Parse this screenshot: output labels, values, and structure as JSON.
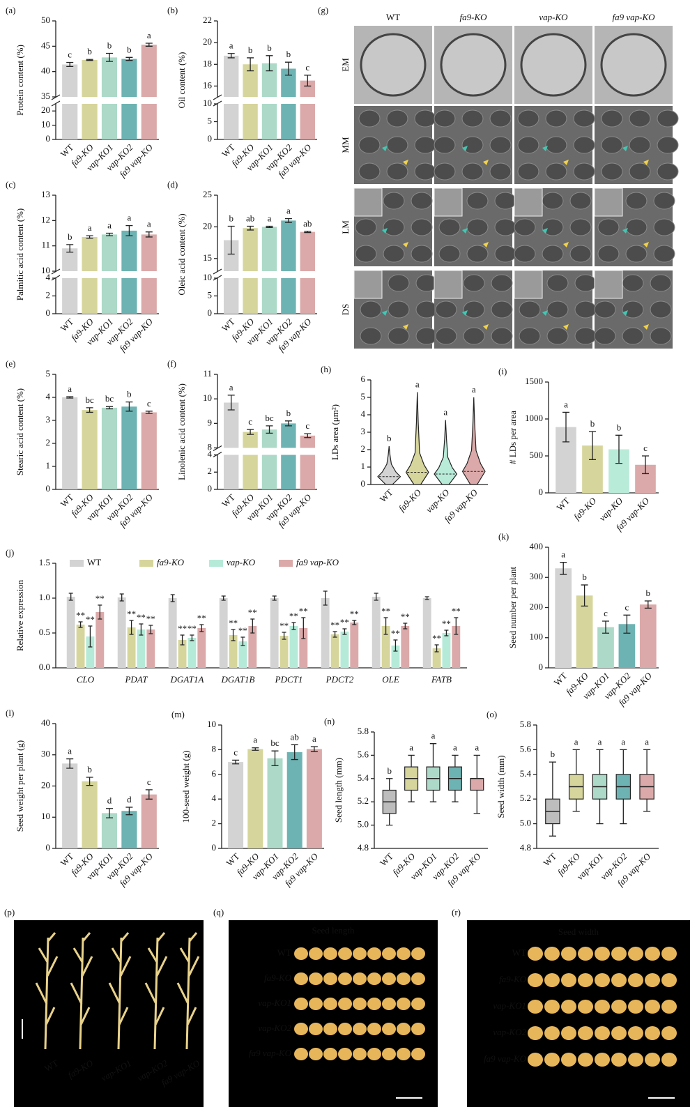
{
  "chart_data": [
    {
      "type": "bar",
      "panel": "(a)",
      "ylabel": "Protein content (%)",
      "categories": [
        "WT",
        "fa9-KO",
        "vap-KO1",
        "vap-KO2",
        "fa9 vap-KO"
      ],
      "values": [
        41.4,
        42.3,
        42.8,
        42.5,
        45.3
      ],
      "errors": [
        0.4,
        0.1,
        0.8,
        0.3,
        0.3
      ],
      "letters": [
        "c",
        "b",
        "b",
        "b",
        "a"
      ],
      "colors": [
        "#d3d3d3",
        "#d6d59b",
        "#acd9c8",
        "#6eb3b3",
        "#dba9a9"
      ],
      "ylim": [
        0,
        50
      ],
      "ybreak": [
        25,
        35
      ],
      "yticks": [
        0,
        10,
        20,
        35,
        40,
        45,
        50
      ]
    },
    {
      "type": "bar",
      "panel": "(b)",
      "ylabel": "Oil content (%)",
      "categories": [
        "WT",
        "fa9-KO",
        "vap-KO1",
        "vap-KO2",
        "fa9 vap-KO"
      ],
      "values": [
        18.8,
        18.0,
        18.1,
        17.6,
        16.5
      ],
      "errors": [
        0.2,
        0.6,
        0.7,
        0.6,
        0.5
      ],
      "letters": [
        "a",
        "b",
        "b",
        "b",
        "c"
      ],
      "colors": [
        "#d3d3d3",
        "#d6d59b",
        "#acd9c8",
        "#6eb3b3",
        "#dba9a9"
      ],
      "ylim": [
        0,
        22
      ],
      "ybreak": [
        10,
        15
      ],
      "yticks": [
        0,
        5,
        10,
        16,
        18,
        20,
        22
      ]
    },
    {
      "type": "bar",
      "panel": "(c)",
      "ylabel": "Palmitic acid content (%)",
      "categories": [
        "WT",
        "fa9-KO",
        "vap-KO1",
        "vap-KO2",
        "fa9 vap-KO"
      ],
      "values": [
        10.9,
        11.35,
        11.45,
        11.6,
        11.45
      ],
      "errors": [
        0.15,
        0.05,
        0.05,
        0.2,
        0.1
      ],
      "letters": [
        "b",
        "a",
        "a",
        "a",
        "a"
      ],
      "colors": [
        "#d3d3d3",
        "#d6d59b",
        "#acd9c8",
        "#6eb3b3",
        "#dba9a9"
      ],
      "ylim": [
        0,
        13
      ],
      "ybreak": [
        4,
        10
      ],
      "yticks": [
        0,
        2,
        4,
        10,
        11,
        12,
        13
      ]
    },
    {
      "type": "bar",
      "panel": "(d)",
      "ylabel": "Oleic acid content (%)",
      "categories": [
        "WT",
        "fa9-KO",
        "vap-KO1",
        "vap-KO2",
        "fa9 vap-KO"
      ],
      "values": [
        17.9,
        19.8,
        20.0,
        21.0,
        19.2
      ],
      "errors": [
        2.2,
        0.3,
        0.1,
        0.3,
        0.1
      ],
      "letters": [
        "b",
        "ab",
        "a",
        "a",
        "ab"
      ],
      "colors": [
        "#d3d3d3",
        "#d6d59b",
        "#acd9c8",
        "#6eb3b3",
        "#dba9a9"
      ],
      "ylim": [
        0,
        25
      ],
      "ybreak": [
        10,
        13
      ],
      "yticks": [
        0,
        5,
        10,
        15,
        20,
        25
      ]
    },
    {
      "type": "bar",
      "panel": "(e)",
      "ylabel": "Stearic acid content (%)",
      "categories": [
        "WT",
        "fa9-KO",
        "vap-KO1",
        "vap-KO2",
        "fa9 vap-KO"
      ],
      "values": [
        4.0,
        3.45,
        3.55,
        3.6,
        3.35
      ],
      "errors": [
        0.03,
        0.1,
        0.05,
        0.2,
        0.05
      ],
      "letters": [
        "a",
        "bc",
        "bc",
        "b",
        "c"
      ],
      "colors": [
        "#d3d3d3",
        "#d6d59b",
        "#acd9c8",
        "#6eb3b3",
        "#dba9a9"
      ],
      "ylim": [
        0,
        5
      ],
      "yticks": [
        0,
        1,
        2,
        3,
        4,
        5
      ]
    },
    {
      "type": "bar",
      "panel": "(f)",
      "ylabel": "Linolenic acid content (%)",
      "categories": [
        "WT",
        "fa9-KO",
        "vap-KO1",
        "vap-KO2",
        "fa9 vap-KO"
      ],
      "values": [
        9.85,
        8.65,
        8.75,
        9.0,
        8.5
      ],
      "errors": [
        0.3,
        0.1,
        0.15,
        0.1,
        0.08
      ],
      "letters": [
        "a",
        "c",
        "bc",
        "b",
        "c"
      ],
      "colors": [
        "#d3d3d3",
        "#d6d59b",
        "#acd9c8",
        "#6eb3b3",
        "#dba9a9"
      ],
      "ylim": [
        0,
        11
      ],
      "ybreak": [
        4,
        8
      ],
      "yticks": [
        0,
        2,
        4,
        8,
        9,
        10,
        11
      ]
    },
    {
      "type": "violin",
      "panel": "(h)",
      "ylabel": "LDs area (μm²)",
      "categories": [
        "WT",
        "fa9-KO",
        "vap-KO",
        "fa9 vap-KO"
      ],
      "medians": [
        0.45,
        0.7,
        0.6,
        0.75
      ],
      "maxima": [
        2.2,
        5.3,
        3.7,
        5.0
      ],
      "letters": [
        "b",
        "a",
        "a",
        "a"
      ],
      "colors": [
        "#d3d3d3",
        "#d6d59b",
        "#b9ebd9",
        "#dba9a9"
      ],
      "ylim": [
        0,
        6
      ],
      "yticks": [
        0,
        1,
        2,
        3,
        4,
        5,
        6
      ]
    },
    {
      "type": "bar",
      "panel": "(i)",
      "ylabel": "# LDs per area",
      "categories": [
        "WT",
        "fa9-KO",
        "vap-KO",
        "fa9 vap-KO"
      ],
      "values": [
        890,
        640,
        590,
        380
      ],
      "errors": [
        200,
        190,
        190,
        120
      ],
      "letters": [
        "a",
        "b",
        "b",
        "c"
      ],
      "colors": [
        "#d3d3d3",
        "#d6d59b",
        "#b9ebd9",
        "#dba9a9"
      ],
      "ylim": [
        0,
        1500
      ],
      "yticks": [
        0,
        500,
        1000,
        1500
      ]
    },
    {
      "type": "grouped_bar",
      "panel": "(j)",
      "ylabel": "Relative expression",
      "significance": "**",
      "categories": [
        "CLO",
        "PDAT",
        "DGAT1A",
        "DGAT1B",
        "PDCT1",
        "PDCT2",
        "OLE",
        "FATB"
      ],
      "ylim": [
        0,
        1.5
      ],
      "yticks": [
        {
          "value": 0,
          "label": "0.0"
        },
        0.5,
        {
          "value": 1,
          "label": "1.0"
        },
        1.5
      ],
      "series": [
        {
          "name": "WT",
          "color": "#d3d3d3",
          "values": [
            1.02,
            1.01,
            1.0,
            1.0,
            1.0,
            1.0,
            1.02,
            1.0
          ],
          "errors": [
            0.05,
            0.05,
            0.05,
            0.03,
            0.03,
            0.1,
            0.05,
            0.02
          ]
        },
        {
          "name": "fa9-KO",
          "color": "#d6d59b",
          "values": [
            0.62,
            0.58,
            0.4,
            0.47,
            0.46,
            0.48,
            0.6,
            0.28
          ],
          "errors": [
            0.04,
            0.1,
            0.07,
            0.08,
            0.05,
            0.04,
            0.12,
            0.05
          ]
        },
        {
          "name": "vap-KO",
          "color": "#b5ead8",
          "values": [
            0.45,
            0.55,
            0.43,
            0.38,
            0.6,
            0.52,
            0.32,
            0.5
          ],
          "errors": [
            0.15,
            0.08,
            0.04,
            0.06,
            0.05,
            0.04,
            0.08,
            0.04
          ]
        },
        {
          "name": "fa9 vap-KO",
          "color": "#dba9a9",
          "values": [
            0.8,
            0.55,
            0.57,
            0.6,
            0.57,
            0.65,
            0.6,
            0.6
          ],
          "errors": [
            0.1,
            0.06,
            0.05,
            0.1,
            0.15,
            0.03,
            0.04,
            0.12
          ]
        }
      ]
    },
    {
      "type": "bar",
      "panel": "(k)",
      "ylabel": "Seed number per plant",
      "categories": [
        "WT",
        "fa9-KO",
        "vap-KO1",
        "vap-KO2",
        "fa9 vap-KO"
      ],
      "values": [
        330,
        240,
        135,
        145,
        210
      ],
      "errors": [
        20,
        35,
        20,
        30,
        12
      ],
      "letters": [
        "a",
        "b",
        "c",
        "c",
        "b"
      ],
      "colors": [
        "#d3d3d3",
        "#d6d59b",
        "#acd9c8",
        "#6eb3b3",
        "#dba9a9"
      ],
      "ylim": [
        0,
        400
      ],
      "yticks": [
        0,
        100,
        200,
        300,
        400
      ]
    },
    {
      "type": "bar",
      "panel": "(l)",
      "ylabel": "Seed weight per plant (g)",
      "categories": [
        "WT",
        "fa9-KO",
        "vap-KO1",
        "vap-KO2",
        "fa9 vap-KO"
      ],
      "values": [
        27.2,
        21.5,
        11.3,
        12.0,
        17.3
      ],
      "errors": [
        1.5,
        1.3,
        1.5,
        1.2,
        1.5
      ],
      "letters": [
        "a",
        "b",
        "d",
        "d",
        "c"
      ],
      "colors": [
        "#d3d3d3",
        "#d6d59b",
        "#acd9c8",
        "#6eb3b3",
        "#dba9a9"
      ],
      "ylim": [
        0,
        40
      ],
      "yticks": [
        0,
        10,
        20,
        30,
        40
      ]
    },
    {
      "type": "bar",
      "panel": "(m)",
      "ylabel": "100-seed weight (g)",
      "categories": [
        "WT",
        "fa9-KO",
        "vap-KO1",
        "vap-KO2",
        "fa9 vap-KO"
      ],
      "values": [
        7.0,
        8.05,
        7.3,
        7.8,
        8.05
      ],
      "errors": [
        0.15,
        0.1,
        0.6,
        0.6,
        0.2
      ],
      "letters": [
        "c",
        "a",
        "bc",
        "ab",
        "a"
      ],
      "colors": [
        "#d3d3d3",
        "#d6d59b",
        "#acd9c8",
        "#6eb3b3",
        "#dba9a9"
      ],
      "ylim": [
        0,
        10
      ],
      "yticks": [
        0,
        2,
        4,
        6,
        8,
        10
      ]
    },
    {
      "type": "box",
      "panel": "(n)",
      "ylabel": "Seed length (mm)",
      "categories": [
        "WT",
        "fa9-KO",
        "vap-KO1",
        "vap-KO2",
        "fa9 vap-KO"
      ],
      "boxes": [
        {
          "min": 5.0,
          "q1": 5.1,
          "median": 5.2,
          "q3": 5.3,
          "max": 5.4
        },
        {
          "min": 5.2,
          "q1": 5.3,
          "median": 5.4,
          "q3": 5.5,
          "max": 5.6
        },
        {
          "min": 5.2,
          "q1": 5.3,
          "median": 5.4,
          "q3": 5.5,
          "max": 5.7
        },
        {
          "min": 5.2,
          "q1": 5.3,
          "median": 5.4,
          "q3": 5.5,
          "max": 5.6
        },
        {
          "min": 5.1,
          "q1": 5.3,
          "median": 5.4,
          "q3": 5.4,
          "max": 5.6
        }
      ],
      "letters": [
        "b",
        "a",
        "a",
        "a",
        "a"
      ],
      "colors": [
        "#bdbdbd",
        "#d6d59b",
        "#acd9c8",
        "#6eb3b3",
        "#dba9a9"
      ],
      "ylim": [
        4.8,
        5.8
      ],
      "yticks": [
        4.8,
        {
          "value": 5,
          "label": "5.0"
        },
        5.2,
        5.4,
        5.6,
        5.8
      ]
    },
    {
      "type": "box",
      "panel": "(o)",
      "ylabel": "Seed width (mm)",
      "categories": [
        "WT",
        "fa9-KO",
        "vap-KO1",
        "vap-KO2",
        "fa9 vap-KO"
      ],
      "boxes": [
        {
          "min": 4.9,
          "q1": 5.0,
          "median": 5.1,
          "q3": 5.2,
          "max": 5.5
        },
        {
          "min": 5.1,
          "q1": 5.2,
          "median": 5.3,
          "q3": 5.4,
          "max": 5.6
        },
        {
          "min": 5.0,
          "q1": 5.2,
          "median": 5.3,
          "q3": 5.4,
          "max": 5.6
        },
        {
          "min": 5.0,
          "q1": 5.2,
          "median": 5.3,
          "q3": 5.4,
          "max": 5.6
        },
        {
          "min": 5.1,
          "q1": 5.2,
          "median": 5.3,
          "q3": 5.4,
          "max": 5.6
        }
      ],
      "letters": [
        "b",
        "a",
        "a",
        "a",
        "a"
      ],
      "colors": [
        "#bdbdbd",
        "#d6d59b",
        "#acd9c8",
        "#6eb3b3",
        "#dba9a9"
      ],
      "ylim": [
        4.8,
        5.8
      ],
      "yticks": [
        4.8,
        {
          "value": 5,
          "label": "5.0"
        },
        5.2,
        5.4,
        5.6,
        5.8
      ]
    }
  ],
  "images": [
    {
      "panel": "(g)",
      "columns": [
        "WT",
        "fa9-KO",
        "vap-KO",
        "fa9 vap-KO"
      ],
      "rows": [
        "EM",
        "MM",
        "LM",
        "DS"
      ]
    },
    {
      "panel": "(p)",
      "labels": [
        "WT",
        "fa9-KO",
        "vap-KO1",
        "vap-KO2",
        "fa9 vap-KO"
      ]
    },
    {
      "panel": "(q)",
      "title": "Seed length",
      "labels": [
        "WT",
        "fa9-KO",
        "vap-KO1",
        "vap-KO2",
        "fa9 vap-KO"
      ]
    },
    {
      "panel": "(r)",
      "title": "Seed width",
      "labels": [
        "WT",
        "fa9-KO",
        "vap-KO1",
        "vap-KO2",
        "fa9 vap-KO"
      ]
    }
  ]
}
